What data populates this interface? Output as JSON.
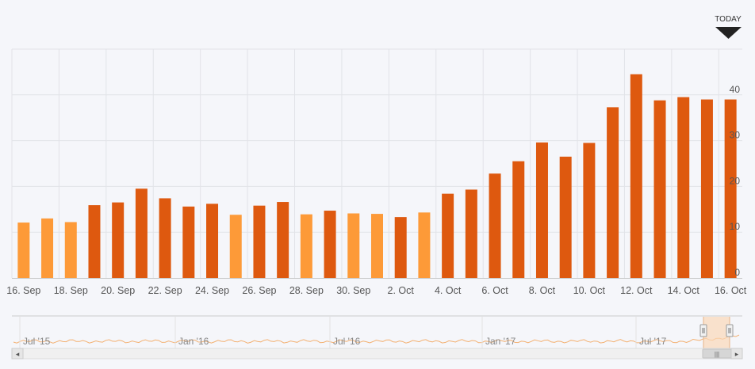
{
  "chart_data": {
    "type": "bar",
    "title": "",
    "xlabel": "",
    "ylabel": "",
    "ylim": [
      0,
      50
    ],
    "yticks": [
      0,
      10,
      20,
      30,
      40
    ],
    "grid": true,
    "marker_label": "TODAY",
    "colors": {
      "light": "#fd9a38",
      "dark": "#de590f"
    },
    "categories": [
      "16. Sep",
      "17. Sep",
      "18. Sep",
      "19. Sep",
      "20. Sep",
      "21. Sep",
      "22. Sep",
      "23. Sep",
      "24. Sep",
      "25. Sep",
      "26. Sep",
      "27. Sep",
      "28. Sep",
      "29. Sep",
      "30. Sep",
      "1. Oct",
      "2. Oct",
      "3. Oct",
      "4. Oct",
      "5. Oct",
      "6. Oct",
      "7. Oct",
      "8. Oct",
      "9. Oct",
      "10. Oct",
      "11. Oct",
      "12. Oct",
      "13. Oct",
      "14. Oct",
      "15. Oct",
      "16. Oct"
    ],
    "tick_labels": [
      "16. Sep",
      "18. Sep",
      "20. Sep",
      "22. Sep",
      "24. Sep",
      "26. Sep",
      "28. Sep",
      "30. Sep",
      "2. Oct",
      "4. Oct",
      "6. Oct",
      "8. Oct",
      "10. Oct",
      "12. Oct",
      "14. Oct",
      "16. Oct"
    ],
    "values": [
      12.1,
      13.0,
      12.2,
      15.9,
      16.5,
      19.5,
      17.4,
      15.6,
      16.2,
      13.8,
      15.8,
      16.6,
      13.9,
      14.7,
      14.1,
      14.0,
      13.3,
      14.3,
      18.4,
      19.3,
      22.8,
      25.5,
      29.6,
      26.5,
      29.5,
      37.3,
      44.5,
      38.8,
      39.5,
      39.0,
      39.0
    ],
    "tones": [
      "light",
      "light",
      "light",
      "dark",
      "dark",
      "dark",
      "dark",
      "dark",
      "dark",
      "light",
      "dark",
      "dark",
      "light",
      "dark",
      "light",
      "light",
      "dark",
      "light",
      "dark",
      "dark",
      "dark",
      "dark",
      "dark",
      "dark",
      "dark",
      "dark",
      "dark",
      "dark",
      "dark",
      "dark",
      "dark"
    ]
  },
  "navigator": {
    "labels": [
      "Jul '15",
      "Jan '16",
      "Jul '16",
      "Jan '17",
      "Jul '17"
    ],
    "scroll_grip": "|||",
    "arrow_left": "◂",
    "arrow_right": "▸"
  }
}
